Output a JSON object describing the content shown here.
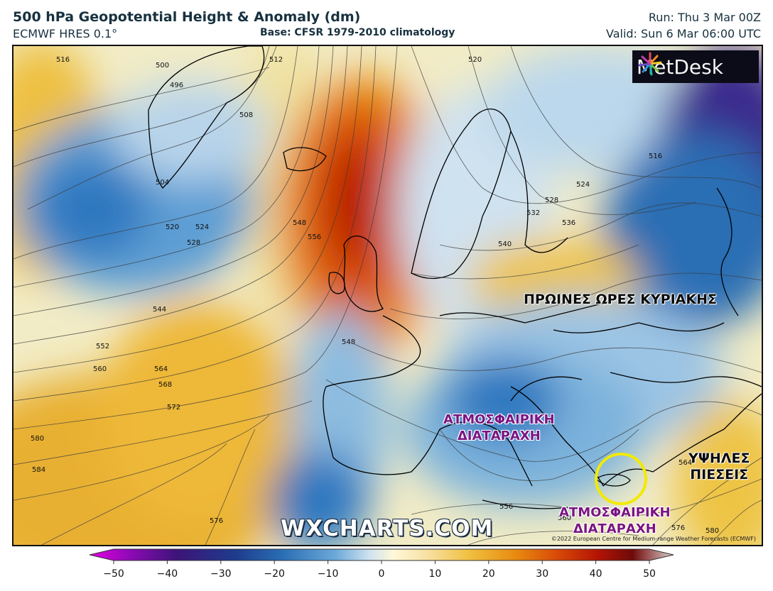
{
  "header": {
    "title": "500 hPa Geopotential Height & Anomaly (dm)",
    "model": "ECMWF HRES 0.1°",
    "base": "Base: CFSR 1979-2010 climatology",
    "run": "Run: Thu 3 Mar 00Z",
    "valid": "Valid: Sun 6 Mar 06:00 UTC"
  },
  "logo": {
    "text": "MetDesk",
    "icon": "sunburst-icon"
  },
  "map": {
    "contour_labels": [
      "516",
      "500",
      "496",
      "512",
      "520",
      "508",
      "504",
      "520",
      "524",
      "528",
      "548",
      "556",
      "544",
      "552",
      "560",
      "564",
      "568",
      "572",
      "580",
      "584",
      "576",
      "548",
      "524",
      "528",
      "532",
      "536",
      "540",
      "516",
      "556",
      "560",
      "564",
      "576",
      "580"
    ],
    "annotations": {
      "sunday_morning": "ΠΡΩΙΝΕΣ ΩΡΕΣ ΚΥΡΙΑΚΗΣ",
      "disturbance_main_line1": "ΑΤΜΟΣΦΑΙΡΙΚΗ",
      "disturbance_main_line2": "ΔΙΑΤΑΡΑΧΗ",
      "disturbance_crete_line1": "ΑΤΜΟΣΦΑΙΡΙΚΗ",
      "disturbance_crete_line2": "ΔΙΑΤΑΡΑΧΗ",
      "high_pressure_line1": "ΥΨΗΛΕΣ",
      "high_pressure_line2": "ΠΙΕΣΕΙΣ"
    },
    "highlight_circle_color": "#f2ea00",
    "watermark": "WXCHARTS.COM",
    "copyright": "©2022 European Centre for Medium-range Weather Forecasts (ECMWF)"
  },
  "colorbar": {
    "ticks": [
      "−50",
      "−40",
      "−30",
      "−20",
      "−10",
      "0",
      "10",
      "20",
      "30",
      "40",
      "50"
    ],
    "colors": [
      "#e600e6",
      "#8c0ab4",
      "#3c1478",
      "#1e3c8c",
      "#2a6eb4",
      "#6aa8d8",
      "#cfe3f0",
      "#ffffff",
      "#f7e9a8",
      "#f0c040",
      "#e88a10",
      "#d84a08",
      "#b41404",
      "#6e0a0a",
      "#d8c8c8"
    ]
  }
}
